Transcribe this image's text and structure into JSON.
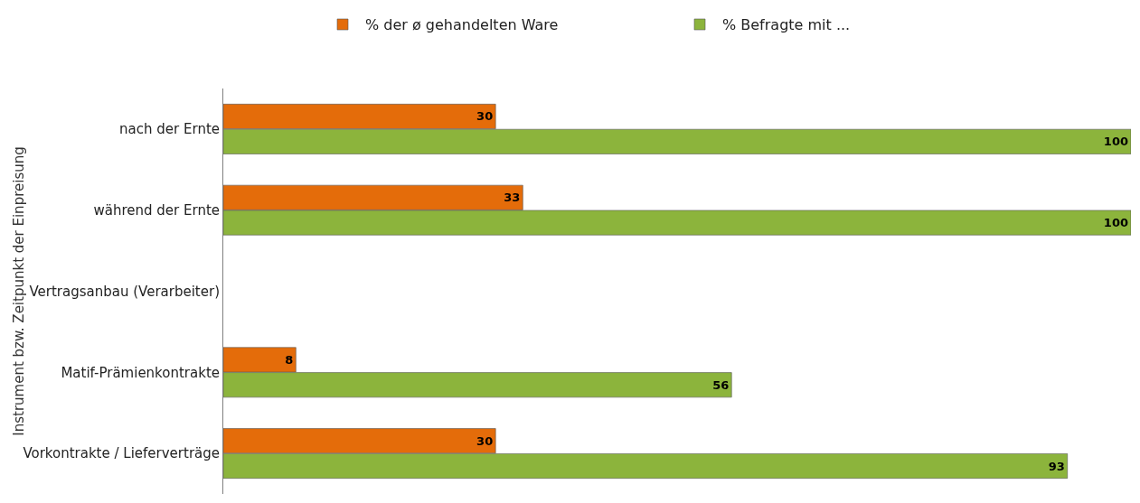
{
  "chart_data": {
    "type": "bar",
    "orientation": "horizontal",
    "ylabel": "Instrument bzw. Zeitpunkt der Einpreisung",
    "categories": [
      "nach der Ernte",
      "während der Ernte",
      "Vertragsanbau (Verarbeiter)",
      "Matif-Prämienkontrakte",
      "Vorkontrakte / Lieferverträge"
    ],
    "series": [
      {
        "name": "% der ø gehandelten Ware",
        "color": "#e46c0a",
        "values": [
          30,
          33,
          null,
          8,
          30
        ]
      },
      {
        "name": "% Befragte mit ...",
        "color": "#8cb43c",
        "values": [
          100,
          100,
          null,
          56,
          93
        ]
      }
    ],
    "xlim": [
      0,
      100
    ],
    "tick_labels": "y",
    "data_labels": true,
    "legend": "top",
    "grid": false
  }
}
